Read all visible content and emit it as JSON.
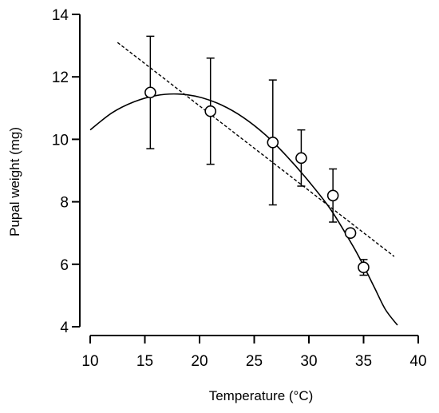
{
  "chart_data": {
    "type": "scatter",
    "title": "",
    "xlabel": "Temperature (°C)",
    "ylabel": "Pupal weight (mg)",
    "xlim": [
      10,
      40
    ],
    "ylim": [
      4,
      14
    ],
    "x_ticks": [
      10,
      15,
      20,
      25,
      30,
      35,
      40
    ],
    "y_ticks": [
      4,
      6,
      8,
      10,
      12,
      14
    ],
    "x_tick_labels": [
      "10",
      "15",
      "20",
      "25",
      "30",
      "35",
      "40"
    ],
    "y_tick_labels": [
      "4",
      "6",
      "8",
      "10",
      "12",
      "14"
    ],
    "grid": false,
    "legend": "none",
    "points": [
      {
        "x": 15.5,
        "y": 11.5,
        "err_low": 9.7,
        "err_high": 13.3
      },
      {
        "x": 21.0,
        "y": 10.9,
        "err_low": 9.2,
        "err_high": 12.6
      },
      {
        "x": 26.7,
        "y": 9.9,
        "err_low": 7.9,
        "err_high": 11.9
      },
      {
        "x": 29.3,
        "y": 9.4,
        "err_low": 8.5,
        "err_high": 10.3
      },
      {
        "x": 32.2,
        "y": 8.2,
        "err_low": 7.35,
        "err_high": 9.05
      },
      {
        "x": 33.8,
        "y": 7.0,
        "err_low": 7.0,
        "err_high": 7.0
      },
      {
        "x": 35.0,
        "y": 5.9,
        "err_low": 5.65,
        "err_high": 6.15
      }
    ],
    "fit_curve": {
      "style": "solid",
      "x": [
        10,
        12,
        14,
        16,
        18,
        20,
        22,
        24,
        26,
        28,
        30,
        32,
        34,
        35,
        36,
        37,
        38.1
      ],
      "y": [
        10.3,
        10.85,
        11.2,
        11.4,
        11.45,
        11.35,
        11.1,
        10.7,
        10.15,
        9.45,
        8.65,
        7.75,
        6.6,
        5.95,
        5.25,
        4.55,
        4.05
      ]
    },
    "fit_linear": {
      "style": "dashed",
      "x": [
        12.5,
        37.8
      ],
      "y": [
        13.1,
        6.25
      ]
    }
  }
}
